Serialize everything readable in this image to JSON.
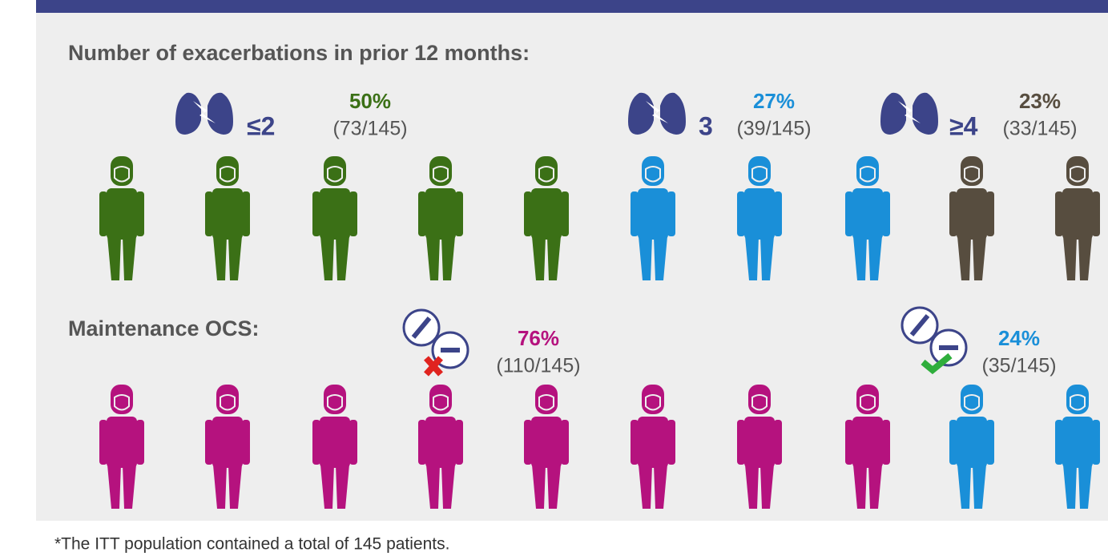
{
  "section1": {
    "heading": "Number of exacerbations in prior 12 months:",
    "groups": [
      {
        "label": "≤2",
        "percent": "50%",
        "count": "(73/145)"
      },
      {
        "label": "3",
        "percent": "27%",
        "count": "(39/145)"
      },
      {
        "label": "≥4",
        "percent": "23%",
        "count": "(33/145)"
      }
    ]
  },
  "section2": {
    "heading": "Maintenance OCS:",
    "groups": [
      {
        "percent": "76%",
        "count": "(110/145)"
      },
      {
        "percent": "24%",
        "count": "(35/145)"
      }
    ]
  },
  "footnote": "*The ITT population contained a total of 145 patients."
}
